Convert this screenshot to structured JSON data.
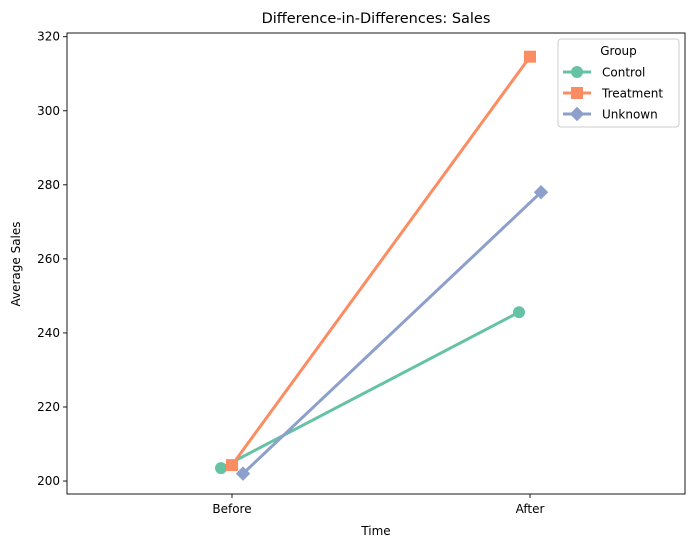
{
  "chart_data": {
    "type": "line",
    "title": "Difference-in-Differences: Sales",
    "xlabel": "Time",
    "ylabel": "Average Sales",
    "categories": [
      "Before",
      "After"
    ],
    "ylim": [
      196.5,
      321
    ],
    "yticks": [
      200,
      220,
      240,
      260,
      280,
      300,
      320
    ],
    "grid": false,
    "legend": {
      "title": "Group",
      "placement": "top-right"
    },
    "series": [
      {
        "name": "Control",
        "values": [
          203.5,
          245.6
        ],
        "color": "#66c2a5",
        "marker": "circle"
      },
      {
        "name": "Treatment",
        "values": [
          204.3,
          314.6
        ],
        "color": "#fc8d62",
        "marker": "square"
      },
      {
        "name": "Unknown",
        "values": [
          202.0,
          278.0
        ],
        "color": "#8da0cb",
        "marker": "diamond"
      }
    ]
  }
}
